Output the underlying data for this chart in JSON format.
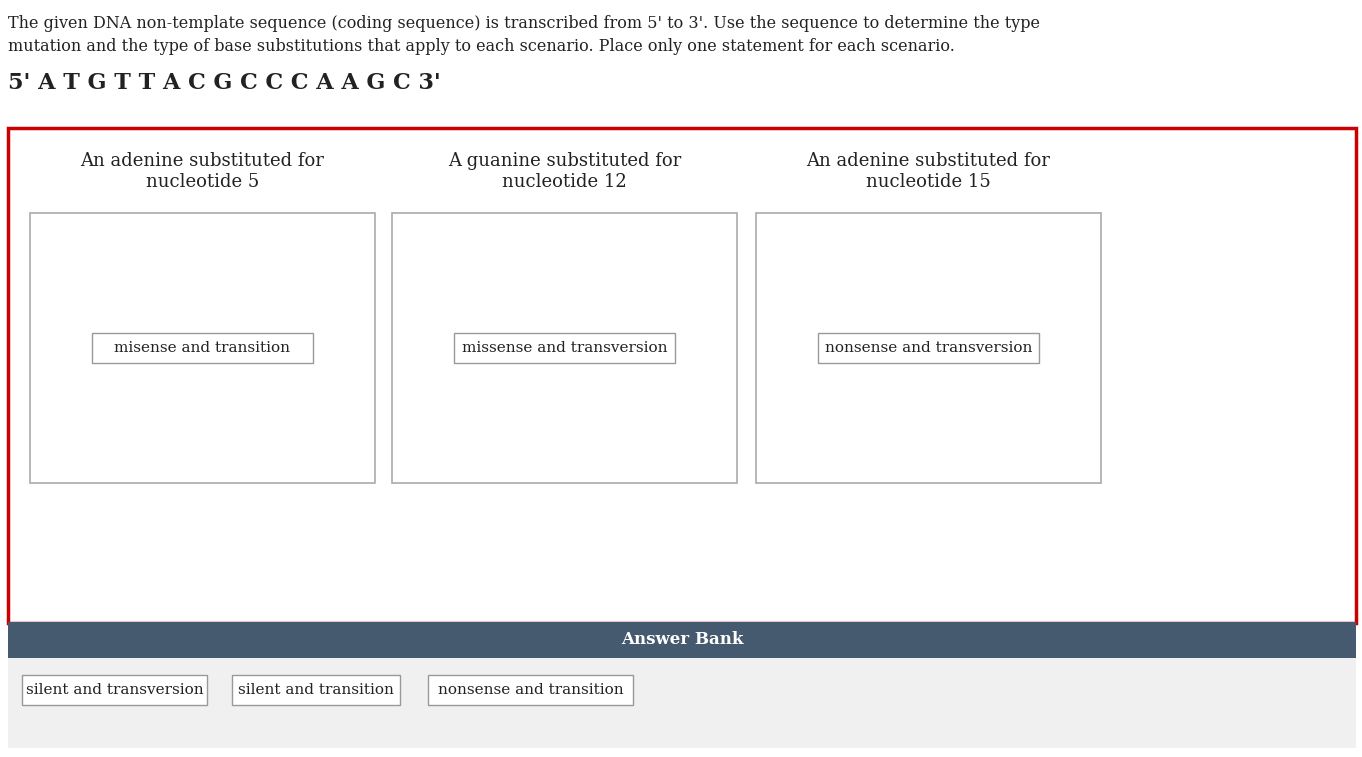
{
  "title_line1": "The given DNA non-template sequence (coding sequence) is transcribed from 5' to 3'. Use the sequence to determine the type",
  "title_line2": "mutation and the type of base substitutions that apply to each scenario. Place only one statement for each scenario.",
  "sequence": "5' A T G T T A C G C C C A A G C 3'",
  "col_headers": [
    "An adenine substituted for\nnucleotide 5",
    "A guanine substituted for\nnucleotide 12",
    "An adenine substituted for\nnucleotide 15"
  ],
  "box_labels": [
    "misense and transition",
    "missense and transversion",
    "nonsense and transversion"
  ],
  "answer_bank_title": "Answer Bank",
  "answer_bank_items": [
    "silent and transversion",
    "silent and transition",
    "nonsense and transition"
  ],
  "bg_color": "#ffffff",
  "red_border_color": "#cc0000",
  "dark_header_color": "#455a6e",
  "answer_bank_bg": "#f0f0f0",
  "text_color_dark": "#222222",
  "text_color_header": "#ffffff",
  "inner_box_border": "#aaaaaa",
  "inner_label_border": "#999999"
}
